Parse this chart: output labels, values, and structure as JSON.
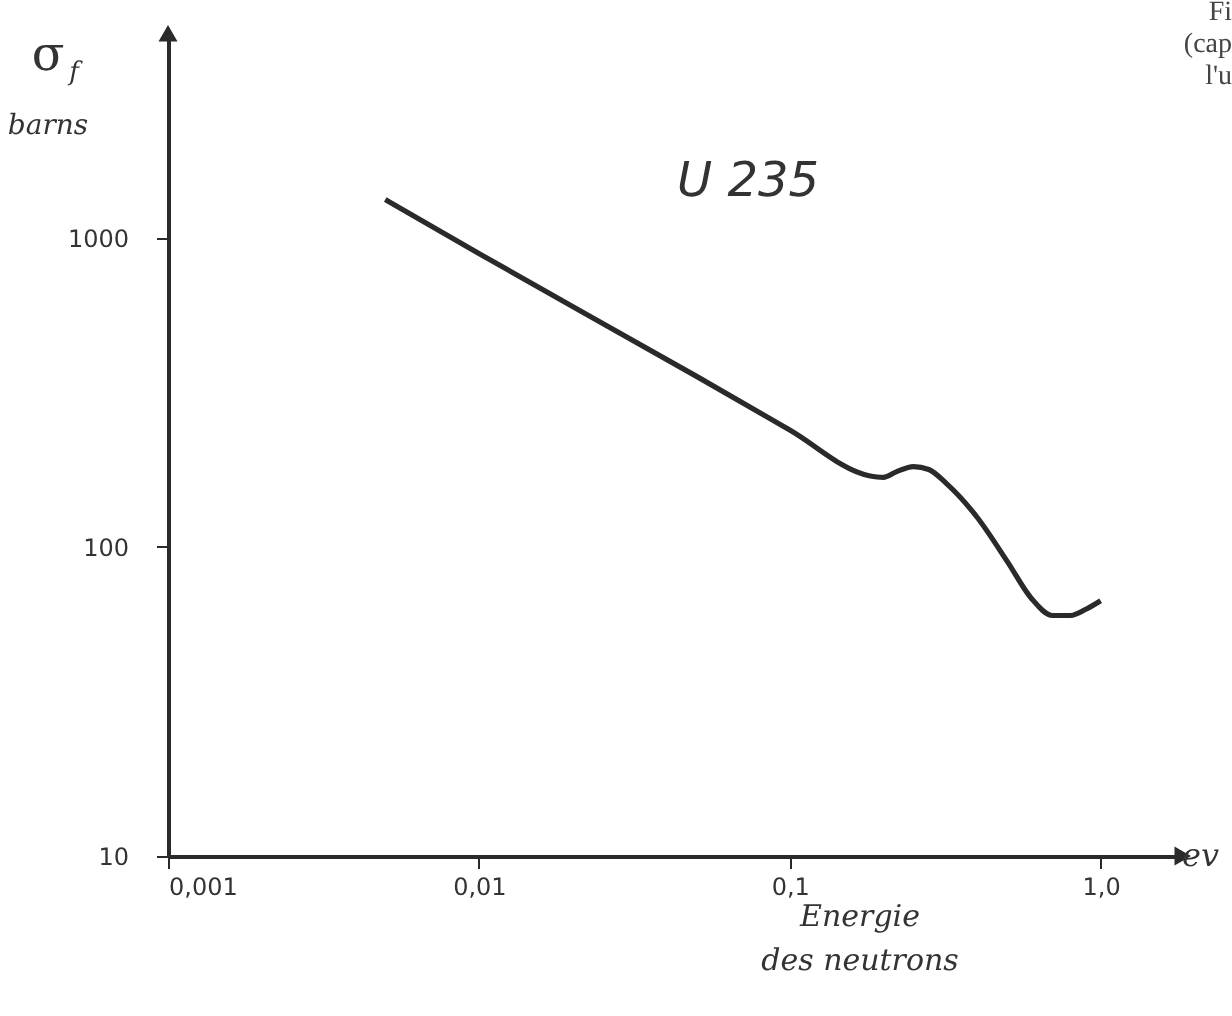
{
  "chart_data": {
    "type": "line",
    "title": "U 235",
    "ylabel": "σ$_{f}$ barns",
    "xlabel": "Energie des neutrons",
    "annotations": [
      "ev",
      "Fi",
      "(cap",
      "l'u"
    ],
    "log": "xy",
    "grid": false,
    "marker": "none",
    "line_style": "solid",
    "xlim": [
      0.001,
      1.8
    ],
    "ylim": [
      10,
      4500
    ],
    "xticks": [
      {
        "value": 0.001,
        "label": "0,001"
      },
      {
        "value": 0.01,
        "label": "0,01"
      },
      {
        "value": 0.1,
        "label": "0,1"
      },
      {
        "value": 1,
        "label": "1,0"
      }
    ],
    "yticks": [
      10,
      100,
      1000
    ],
    "series": [
      {
        "color": "#2a2a2a",
        "x": [
          0.005,
          0.01,
          0.05,
          0.1,
          0.18,
          0.2,
          0.22,
          0.25,
          0.28,
          0.32,
          0.4,
          0.5,
          0.6,
          0.7,
          0.8,
          0.9,
          1.0
        ],
        "values": [
          1330,
          890,
          357,
          239,
          170,
          168,
          175,
          182,
          178,
          160,
          125,
          90,
          68,
          60,
          60,
          63,
          67
        ]
      }
    ]
  }
}
